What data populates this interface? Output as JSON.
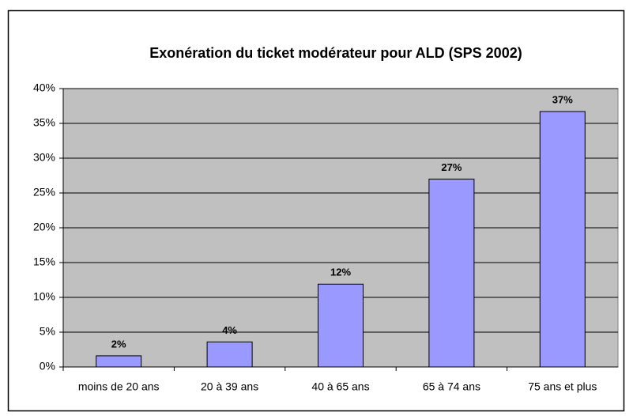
{
  "chart_data": {
    "type": "bar",
    "title": "Exonération du ticket modérateur pour ALD (SPS 2002)",
    "categories": [
      "moins de 20 ans",
      "20 à 39 ans",
      "40 à 65 ans",
      "65 à 74 ans",
      "75 ans et plus"
    ],
    "values": [
      1.6,
      3.6,
      11.9,
      27.0,
      36.7
    ],
    "value_labels": [
      "2%",
      "4%",
      "12%",
      "27%",
      "37%"
    ],
    "color": "#9999ff",
    "ylim": [
      0,
      40
    ],
    "yticks": [
      {
        "value": 0,
        "label": "0%"
      },
      {
        "value": 5,
        "label": "5%"
      },
      {
        "value": 10,
        "label": "10%"
      },
      {
        "value": 15,
        "label": "15%"
      },
      {
        "value": 20,
        "label": "20%"
      },
      {
        "value": 25,
        "label": "25%"
      },
      {
        "value": 30,
        "label": "30%"
      },
      {
        "value": 35,
        "label": "35%"
      },
      {
        "value": 40,
        "label": "40%"
      }
    ],
    "grid": true
  }
}
